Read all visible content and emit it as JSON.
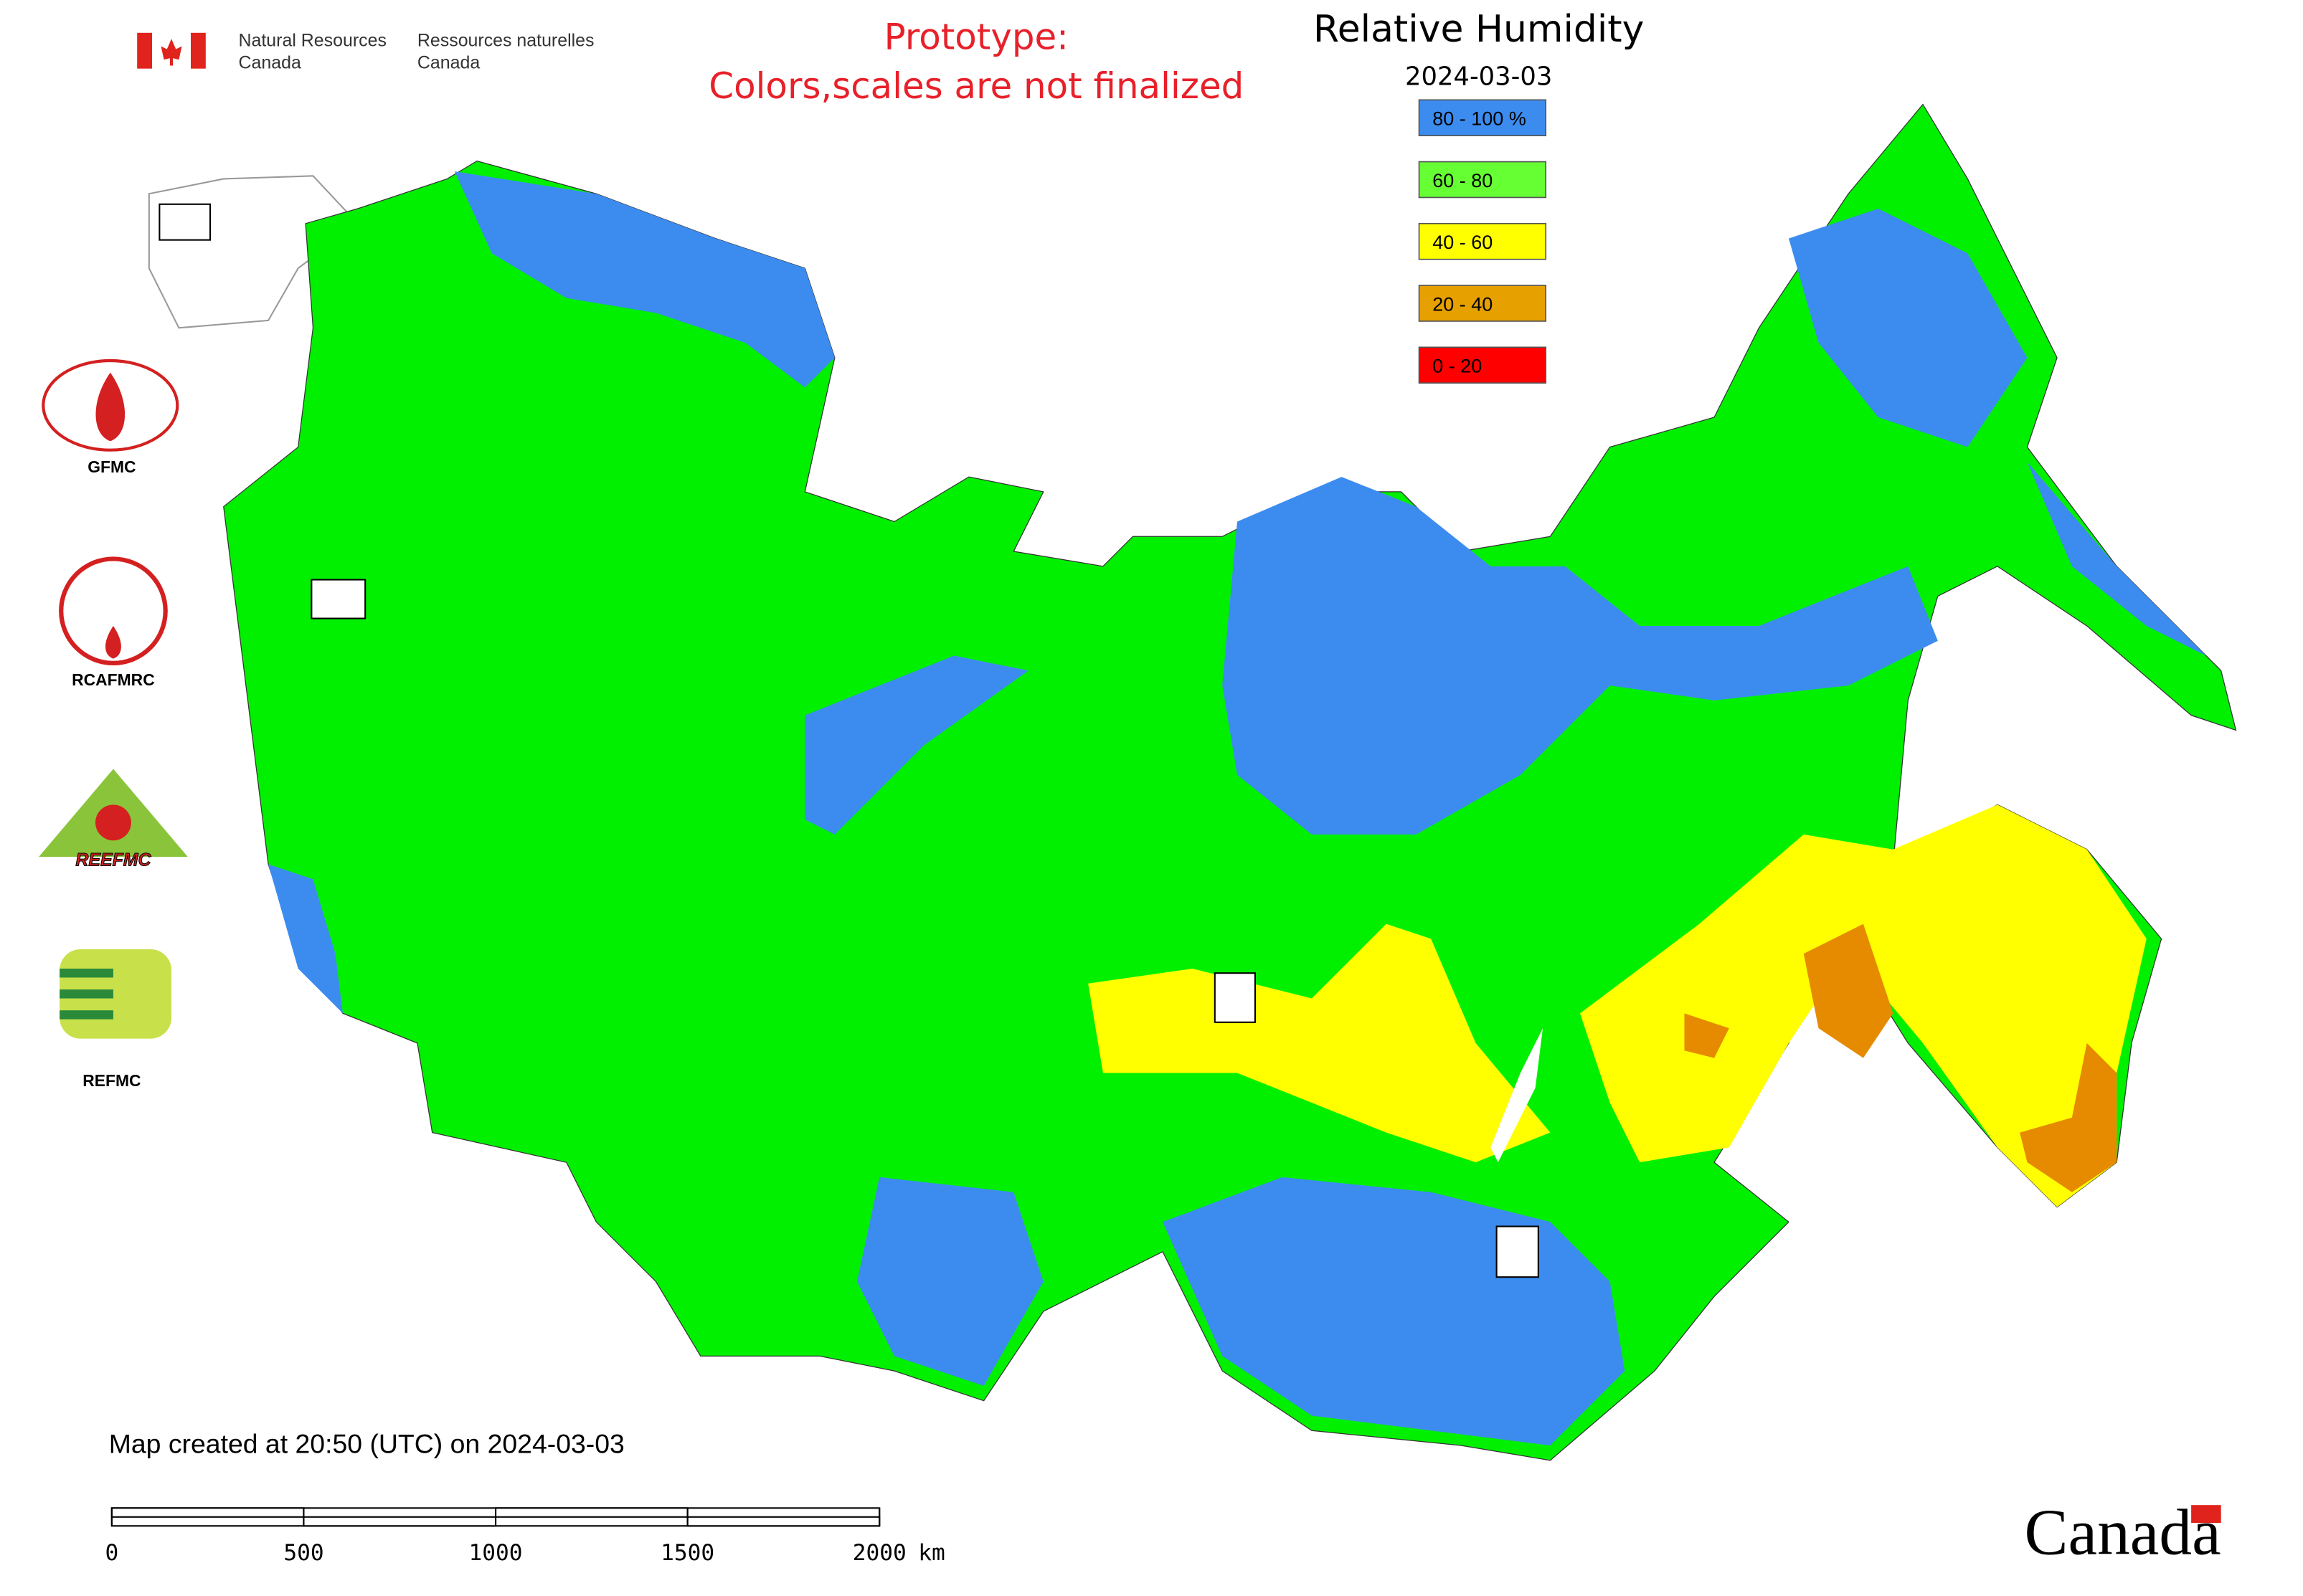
{
  "header": {
    "org_en": "Natural Resources",
    "org_en_2": "Canada",
    "org_fr": "Ressources naturelles",
    "org_fr_2": "Canada"
  },
  "notice": {
    "line1": "Prototype:",
    "line2": "Colors,scales are not finalized"
  },
  "title": "Relative Humidity",
  "date": "2024-03-03",
  "legend": [
    {
      "label": "80 - 100 %",
      "color": "#3c8cf0"
    },
    {
      "label": "60 - 80",
      "color": "#66ff33"
    },
    {
      "label": "40 - 60",
      "color": "#ffff00"
    },
    {
      "label": "20 - 40",
      "color": "#e6a000"
    },
    {
      "label": "0 - 20",
      "color": "#ff0000"
    }
  ],
  "partners": [
    "GFMC",
    "RCAFMRC",
    "REEFMC",
    "REFMC"
  ],
  "footer": {
    "created": "Map created at 20:50 (UTC) on 2024-03-03"
  },
  "scale_bar": {
    "ticks": [
      0,
      500,
      1000,
      1500,
      2000
    ],
    "unit": "km"
  },
  "wordmark": "Canada"
}
